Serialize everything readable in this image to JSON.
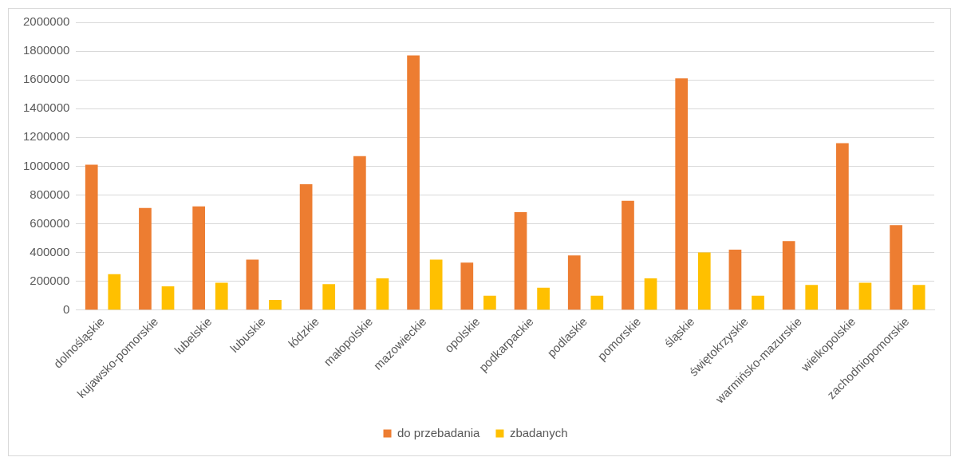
{
  "chart_data": {
    "type": "bar",
    "categories": [
      "dolnośląskie",
      "kujawsko-pomorskie",
      "lubelskie",
      "lubuskie",
      "łódzkie",
      "małopolskie",
      "mazowieckie",
      "opolskie",
      "podkarpackie",
      "podlaskie",
      "pomorskie",
      "śląskie",
      "świętokrzyskie",
      "warmińsko-mazurskie",
      "wielkopolskie",
      "zachodniopomorskie"
    ],
    "series": [
      {
        "name": "do przebadania",
        "color": "#ed7d31",
        "values": [
          1010000,
          710000,
          720000,
          350000,
          875000,
          1070000,
          1770000,
          330000,
          680000,
          380000,
          760000,
          1610000,
          420000,
          480000,
          1160000,
          590000
        ]
      },
      {
        "name": "zbadanych",
        "color": "#ffc000",
        "values": [
          250000,
          165000,
          190000,
          70000,
          180000,
          220000,
          350000,
          100000,
          155000,
          100000,
          220000,
          400000,
          100000,
          175000,
          190000,
          175000
        ]
      }
    ],
    "ylim": [
      0,
      2000000
    ],
    "yticks": [
      0,
      200000,
      400000,
      600000,
      800000,
      1000000,
      1200000,
      1400000,
      1600000,
      1800000,
      2000000
    ],
    "grid": "y",
    "legend": "bottom"
  }
}
